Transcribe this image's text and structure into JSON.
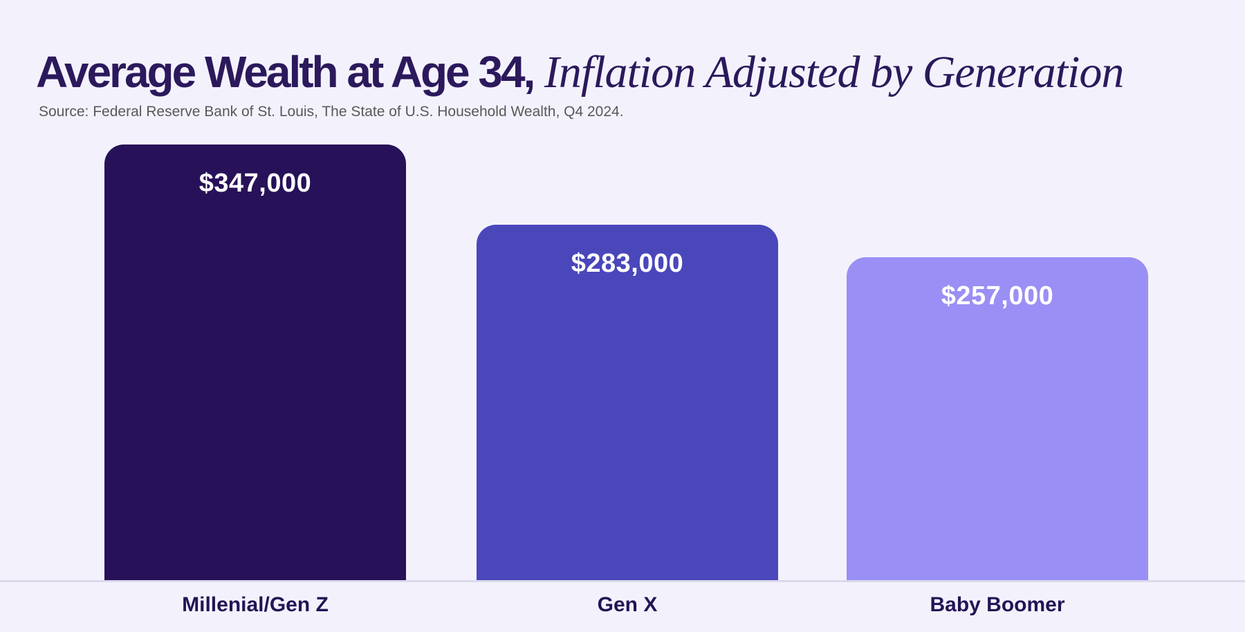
{
  "page": {
    "background_color": "#F3F2FC",
    "accent_dark": "#2B195C"
  },
  "header": {
    "title_bold": "Average Wealth at Age 34,",
    "title_italic": " Inflation Adjusted by Generation",
    "source": "Source: Federal Reserve Bank of St. Louis, The State of U.S. Household Wealth, Q4 2024."
  },
  "chart_data": {
    "type": "bar",
    "title": "Average Wealth at Age 34, Inflation Adjusted by Generation",
    "source": "Source: Federal Reserve Bank of St. Louis, The State of U.S. Household Wealth, Q4 2024.",
    "orientation": "vertical",
    "categories": [
      "Millenial/Gen Z",
      "Gen X",
      "Baby Boomer"
    ],
    "values": [
      347000,
      283000,
      257000
    ],
    "value_labels": [
      "$347,000",
      "$283,000",
      "$257,000"
    ],
    "bar_colors": [
      "#271158",
      "#4A47BB",
      "#9A8FF4"
    ],
    "value_label_color": "#FFFFFF",
    "category_label_color": "#241456",
    "ylim": [
      0,
      347000
    ],
    "grid": false,
    "legend": "none",
    "baseline_color": "#D9D9EB"
  }
}
